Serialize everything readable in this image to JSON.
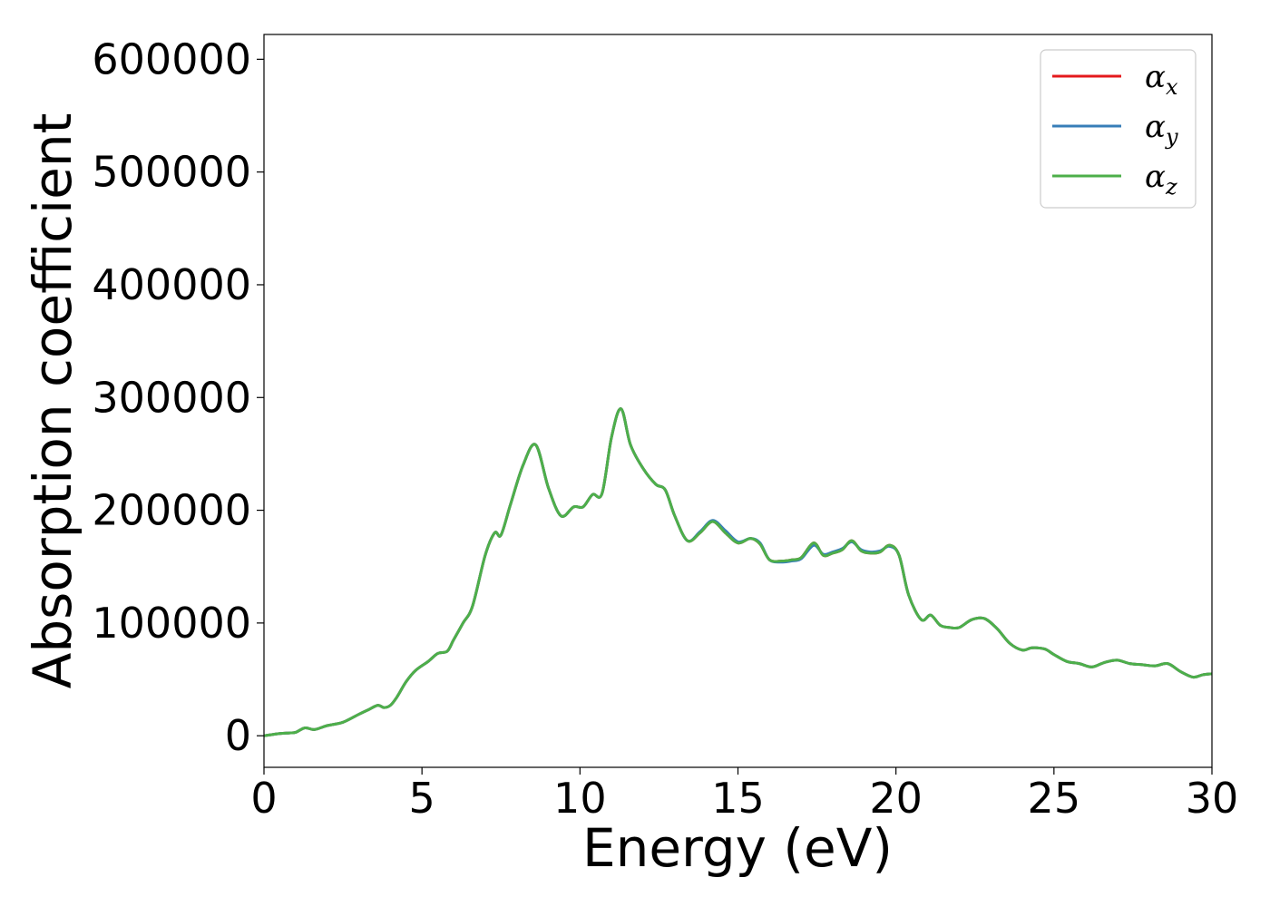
{
  "chart_data": {
    "type": "line",
    "xlabel": "Energy (eV)",
    "ylabel": "Absorption coefficient",
    "xlim": [
      0,
      30
    ],
    "ylim": [
      -28000,
      622000
    ],
    "xticks": [
      0,
      5,
      10,
      15,
      20,
      25,
      30
    ],
    "yticks": [
      0,
      100000,
      200000,
      300000,
      400000,
      500000,
      600000
    ],
    "grid": false,
    "legend_position": "top-right",
    "series": [
      {
        "name": "α",
        "subscript": "x",
        "color": "#e41a1c",
        "x": [
          0,
          0.5,
          0.8,
          1.0,
          1.3,
          1.6,
          2.0,
          2.5,
          3.0,
          3.3,
          3.6,
          3.8,
          4.0,
          4.2,
          4.5,
          4.8,
          5.2,
          5.5,
          5.8,
          6.0,
          6.3,
          6.6,
          7.0,
          7.3,
          7.5,
          7.8,
          8.2,
          8.6,
          9.0,
          9.4,
          9.8,
          10.1,
          10.4,
          10.7,
          11.0,
          11.3,
          11.6,
          12.0,
          12.4,
          12.7,
          13.0,
          13.4,
          13.8,
          14.2,
          14.6,
          15.0,
          15.4,
          15.7,
          16.0,
          16.4,
          16.7,
          17.0,
          17.4,
          17.7,
          18.0,
          18.3,
          18.6,
          18.9,
          19.2,
          19.5,
          19.8,
          20.1,
          20.4,
          20.8,
          21.1,
          21.4,
          21.7,
          22.0,
          22.4,
          22.8,
          23.2,
          23.6,
          24.0,
          24.3,
          24.7,
          25.0,
          25.4,
          25.8,
          26.2,
          26.6,
          27.0,
          27.4,
          27.8,
          28.2,
          28.6,
          29.0,
          29.4,
          29.7,
          30.0
        ],
        "y": [
          0,
          2000,
          2500,
          3000,
          7000,
          5500,
          9000,
          12000,
          19000,
          23000,
          27000,
          25000,
          27000,
          34000,
          48000,
          58000,
          66000,
          73000,
          75000,
          85000,
          100000,
          115000,
          160000,
          180000,
          178000,
          205000,
          240000,
          258000,
          220000,
          195000,
          203000,
          203000,
          214000,
          215000,
          265000,
          290000,
          258000,
          237000,
          223000,
          218000,
          195000,
          173000,
          180000,
          190000,
          180000,
          171000,
          175000,
          170000,
          156000,
          155000,
          156000,
          158000,
          171000,
          160000,
          162000,
          165000,
          173000,
          164000,
          162000,
          163000,
          169000,
          160000,
          125000,
          103000,
          107000,
          98000,
          96000,
          96000,
          103000,
          104000,
          95000,
          82000,
          76000,
          78000,
          77000,
          72000,
          66000,
          64000,
          61000,
          65000,
          67000,
          64000,
          63000,
          62000,
          64000,
          57000,
          52000,
          54000,
          55000
        ]
      },
      {
        "name": "α",
        "subscript": "y",
        "color": "#377eb8",
        "x": [
          0,
          0.5,
          0.8,
          1.0,
          1.3,
          1.6,
          2.0,
          2.5,
          3.0,
          3.3,
          3.6,
          3.8,
          4.0,
          4.2,
          4.5,
          4.8,
          5.2,
          5.5,
          5.8,
          6.0,
          6.3,
          6.6,
          7.0,
          7.3,
          7.5,
          7.8,
          8.2,
          8.6,
          9.0,
          9.4,
          9.8,
          10.1,
          10.4,
          10.7,
          11.0,
          11.3,
          11.6,
          12.0,
          12.4,
          12.7,
          13.0,
          13.4,
          13.8,
          14.2,
          14.6,
          15.0,
          15.4,
          15.7,
          16.0,
          16.4,
          16.7,
          17.0,
          17.4,
          17.7,
          18.0,
          18.3,
          18.6,
          18.9,
          19.2,
          19.5,
          19.8,
          20.1,
          20.4,
          20.8,
          21.1,
          21.4,
          21.7,
          22.0,
          22.4,
          22.8,
          23.2,
          23.6,
          24.0,
          24.3,
          24.7,
          25.0,
          25.4,
          25.8,
          26.2,
          26.6,
          27.0,
          27.4,
          27.8,
          28.2,
          28.6,
          29.0,
          29.4,
          29.7,
          30.0
        ],
        "y": [
          0,
          2000,
          2500,
          3000,
          7000,
          5500,
          9000,
          12000,
          19000,
          23000,
          27000,
          25000,
          27000,
          34000,
          48000,
          58000,
          66000,
          73000,
          75000,
          85000,
          100000,
          115000,
          160000,
          180000,
          178000,
          205000,
          240000,
          258000,
          220000,
          195000,
          203000,
          203000,
          214000,
          215000,
          265000,
          290000,
          258000,
          237000,
          223000,
          218000,
          195000,
          173000,
          181000,
          191000,
          182000,
          172000,
          175000,
          171000,
          156000,
          154000,
          155000,
          157000,
          169000,
          161000,
          163000,
          166000,
          172000,
          165000,
          163000,
          164000,
          168000,
          160000,
          125000,
          103000,
          107000,
          98000,
          96000,
          96000,
          103000,
          104000,
          95000,
          82000,
          76000,
          78000,
          77000,
          72000,
          66000,
          64000,
          61000,
          65000,
          67000,
          64000,
          63000,
          62000,
          64000,
          57000,
          52000,
          54000,
          55000
        ]
      },
      {
        "name": "α",
        "subscript": "z",
        "color": "#4daf4a",
        "x": [
          0,
          0.5,
          0.8,
          1.0,
          1.3,
          1.6,
          2.0,
          2.5,
          3.0,
          3.3,
          3.6,
          3.8,
          4.0,
          4.2,
          4.5,
          4.8,
          5.2,
          5.5,
          5.8,
          6.0,
          6.3,
          6.6,
          7.0,
          7.3,
          7.5,
          7.8,
          8.2,
          8.6,
          9.0,
          9.4,
          9.8,
          10.1,
          10.4,
          10.7,
          11.0,
          11.3,
          11.6,
          12.0,
          12.4,
          12.7,
          13.0,
          13.4,
          13.8,
          14.2,
          14.6,
          15.0,
          15.4,
          15.7,
          16.0,
          16.4,
          16.7,
          17.0,
          17.4,
          17.7,
          18.0,
          18.3,
          18.6,
          18.9,
          19.2,
          19.5,
          19.8,
          20.1,
          20.4,
          20.8,
          21.1,
          21.4,
          21.7,
          22.0,
          22.4,
          22.8,
          23.2,
          23.6,
          24.0,
          24.3,
          24.7,
          25.0,
          25.4,
          25.8,
          26.2,
          26.6,
          27.0,
          27.4,
          27.8,
          28.2,
          28.6,
          29.0,
          29.4,
          29.7,
          30.0
        ],
        "y": [
          0,
          2000,
          2500,
          3000,
          7000,
          5500,
          9000,
          12000,
          19000,
          23000,
          27000,
          25000,
          27000,
          34000,
          48000,
          58000,
          66000,
          73000,
          75000,
          85000,
          100000,
          115000,
          160000,
          180000,
          178000,
          205000,
          240000,
          258000,
          220000,
          195000,
          203000,
          203000,
          214000,
          215000,
          265000,
          290000,
          258000,
          237000,
          223000,
          218000,
          195000,
          173000,
          180000,
          190000,
          180000,
          171000,
          175000,
          170000,
          156000,
          155000,
          156000,
          158000,
          171000,
          160000,
          162000,
          165000,
          173000,
          164000,
          162000,
          163000,
          169000,
          160000,
          125000,
          103000,
          107000,
          98000,
          96000,
          96000,
          103000,
          104000,
          95000,
          82000,
          76000,
          78000,
          77000,
          72000,
          66000,
          64000,
          61000,
          65000,
          67000,
          64000,
          63000,
          62000,
          64000,
          57000,
          52000,
          54000,
          55000
        ]
      }
    ]
  }
}
